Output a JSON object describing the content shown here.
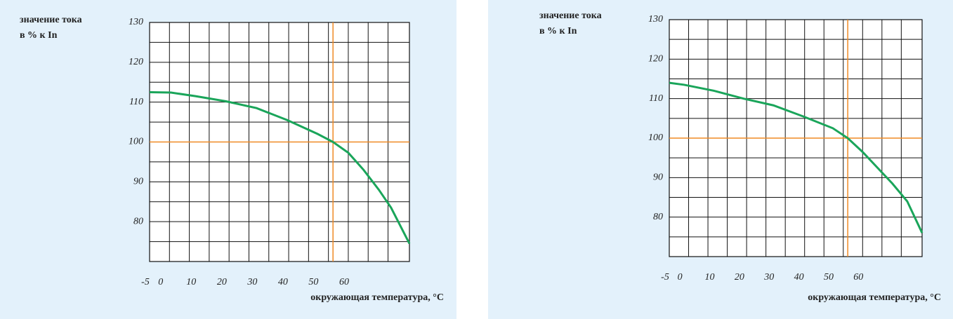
{
  "chart_data": [
    {
      "type": "line",
      "ylabel": [
        "значение тока",
        "в % к In"
      ],
      "xlabel": "окружающая температура, °C",
      "xlim": [
        -5,
        80
      ],
      "ylim": [
        70,
        130
      ],
      "xticks": [
        -5,
        0,
        10,
        20,
        30,
        40,
        50,
        60
      ],
      "yticks": [
        80,
        90,
        100,
        110,
        120,
        130
      ],
      "xgrid": [
        -5,
        1.5,
        8,
        14.5,
        21,
        27.5,
        34,
        40.5,
        47,
        53.5,
        60,
        66.5,
        73,
        80
      ],
      "ygrid": [
        70,
        75,
        80,
        85,
        90,
        95,
        100,
        105,
        110,
        115,
        120,
        125,
        130
      ],
      "reference": {
        "x": 55,
        "y": 100,
        "color": "#f08a24"
      },
      "series": [
        {
          "color": "#1aa55a",
          "x": [
            -5,
            2,
            10,
            20,
            30,
            40,
            50,
            55,
            60,
            65,
            70,
            74,
            80
          ],
          "values": [
            112.5,
            112.4,
            111.5,
            110.2,
            108.5,
            105.5,
            102,
            100,
            97.3,
            93,
            88,
            83.5,
            74.5
          ]
        }
      ]
    },
    {
      "type": "line",
      "ylabel": [
        "значение тока",
        "в % к In"
      ],
      "xlabel": "окружающая температура, °C",
      "xlim": [
        -5,
        80
      ],
      "ylim": [
        70,
        130
      ],
      "xticks": [
        -5,
        0,
        10,
        20,
        30,
        40,
        50,
        60
      ],
      "yticks": [
        80,
        90,
        100,
        110,
        120,
        130
      ],
      "xgrid": [
        -5,
        1.5,
        8,
        14.5,
        21,
        27.5,
        34,
        40.5,
        47,
        53.5,
        60,
        66.5,
        73,
        80
      ],
      "ygrid": [
        70,
        75,
        80,
        85,
        90,
        95,
        100,
        105,
        110,
        115,
        120,
        125,
        130
      ],
      "reference": {
        "x": 55,
        "y": 100,
        "color": "#f08a24"
      },
      "series": [
        {
          "color": "#1aa55a",
          "x": [
            -5,
            0,
            10,
            20,
            30,
            40,
            50,
            55,
            60,
            65,
            70,
            75,
            80
          ],
          "values": [
            114,
            113.5,
            112,
            110,
            108.3,
            105.5,
            102.5,
            100,
            96.5,
            92.5,
            88.5,
            84,
            76
          ]
        }
      ]
    }
  ]
}
